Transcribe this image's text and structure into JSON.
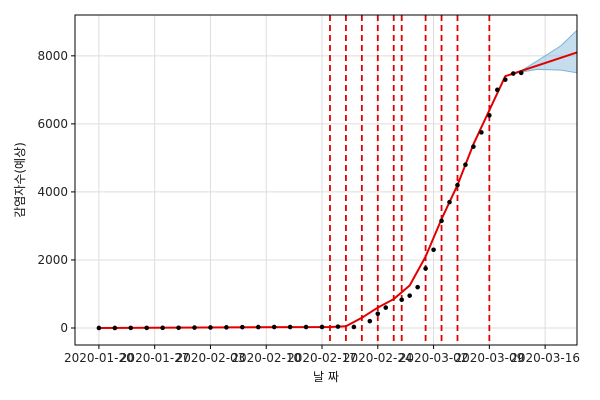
{
  "chart_data": {
    "type": "line",
    "title": "",
    "xlabel": "날 짜",
    "ylabel": "감염자수(예상)",
    "x_ticks": [
      "2020-01-20",
      "2020-01-27",
      "2020-02-03",
      "2020-02-10",
      "2020-02-17",
      "2020-02-24",
      "2020-03-02",
      "2020-03-09",
      "2020-03-16"
    ],
    "y_ticks": [
      0,
      2000,
      4000,
      6000,
      8000
    ],
    "xlim": [
      "2020-01-17",
      "2020-03-20"
    ],
    "ylim": [
      -500,
      9200
    ],
    "grid": true,
    "observed": {
      "color": "#000000",
      "points": [
        [
          "2020-01-20",
          1
        ],
        [
          "2020-01-22",
          1
        ],
        [
          "2020-01-24",
          2
        ],
        [
          "2020-01-26",
          3
        ],
        [
          "2020-01-28",
          4
        ],
        [
          "2020-01-30",
          6
        ],
        [
          "2020-02-01",
          12
        ],
        [
          "2020-02-03",
          15
        ],
        [
          "2020-02-05",
          19
        ],
        [
          "2020-02-07",
          24
        ],
        [
          "2020-02-09",
          27
        ],
        [
          "2020-02-11",
          28
        ],
        [
          "2020-02-13",
          28
        ],
        [
          "2020-02-15",
          28
        ],
        [
          "2020-02-17",
          30
        ],
        [
          "2020-02-19",
          40
        ],
        [
          "2020-02-21",
          30
        ],
        [
          "2020-02-23",
          200
        ],
        [
          "2020-02-24",
          420
        ],
        [
          "2020-02-25",
          600
        ],
        [
          "2020-02-27",
          830
        ],
        [
          "2020-02-28",
          950
        ],
        [
          "2020-02-29",
          1200
        ],
        [
          "2020-03-01",
          1750
        ],
        [
          "2020-03-02",
          2300
        ],
        [
          "2020-03-03",
          3150
        ],
        [
          "2020-03-04",
          3700
        ],
        [
          "2020-03-05",
          4200
        ],
        [
          "2020-03-06",
          4800
        ],
        [
          "2020-03-07",
          5330
        ],
        [
          "2020-03-08",
          5750
        ],
        [
          "2020-03-09",
          6250
        ],
        [
          "2020-03-10",
          7000
        ],
        [
          "2020-03-11",
          7300
        ],
        [
          "2020-03-12",
          7480
        ],
        [
          "2020-03-13",
          7500
        ]
      ]
    },
    "trend": {
      "color": "#e00000",
      "points": [
        [
          "2020-01-20",
          0
        ],
        [
          "2020-02-18",
          30
        ],
        [
          "2020-02-20",
          50
        ],
        [
          "2020-02-22",
          300
        ],
        [
          "2020-02-24",
          600
        ],
        [
          "2020-02-26",
          850
        ],
        [
          "2020-02-28",
          1250
        ],
        [
          "2020-03-01",
          2100
        ],
        [
          "2020-03-03",
          3200
        ],
        [
          "2020-03-05",
          4200
        ],
        [
          "2020-03-07",
          5400
        ],
        [
          "2020-03-11",
          7400
        ],
        [
          "2020-03-20",
          8100
        ]
      ]
    },
    "forecast_band": {
      "color": "#7fb3d5",
      "upper": [
        [
          "2020-03-11",
          7400
        ],
        [
          "2020-03-13",
          7560
        ],
        [
          "2020-03-15",
          7850
        ],
        [
          "2020-03-18",
          8300
        ],
        [
          "2020-03-20",
          8750
        ]
      ],
      "lower": [
        [
          "2020-03-11",
          7400
        ],
        [
          "2020-03-13",
          7520
        ],
        [
          "2020-03-15",
          7600
        ],
        [
          "2020-03-18",
          7580
        ],
        [
          "2020-03-20",
          7500
        ]
      ]
    },
    "changepoints": {
      "color": "#e00000",
      "dates": [
        "2020-02-18",
        "2020-02-20",
        "2020-02-22",
        "2020-02-24",
        "2020-02-26",
        "2020-02-27",
        "2020-03-01",
        "2020-03-03",
        "2020-03-05",
        "2020-03-09"
      ]
    }
  }
}
